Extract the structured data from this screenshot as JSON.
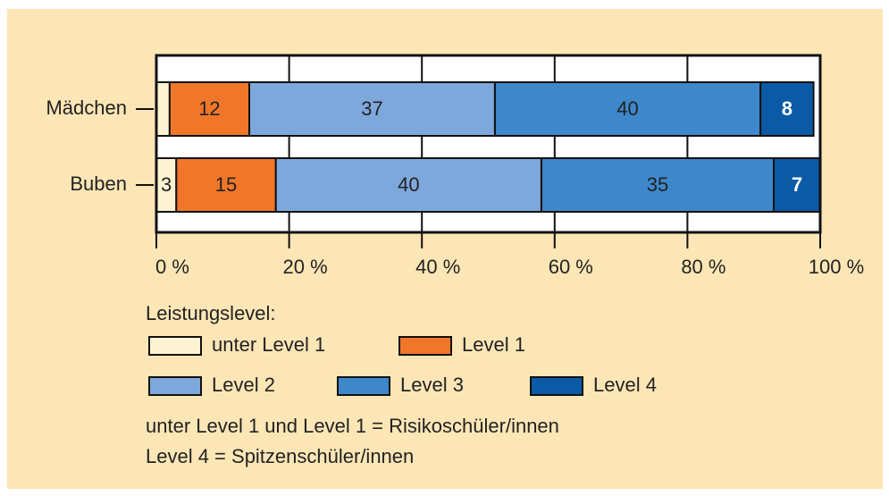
{
  "chart_data": {
    "type": "stacked-barh",
    "categories": [
      "Mädchen",
      "Buben"
    ],
    "series": [
      {
        "name": "unter Level 1",
        "color": "#fdf3d2",
        "values": [
          2,
          3
        ]
      },
      {
        "name": "Level 1",
        "color": "#f0772a",
        "values": [
          12,
          15
        ]
      },
      {
        "name": "Level 2",
        "color": "#7ea8db",
        "values": [
          37,
          40
        ]
      },
      {
        "name": "Level 3",
        "color": "#3e87cb",
        "values": [
          40,
          35
        ]
      },
      {
        "name": "Level 4",
        "color": "#0b5aa6",
        "values": [
          8,
          7
        ]
      }
    ],
    "xlim": [
      0,
      100
    ],
    "xticks": [
      {
        "value": 0,
        "label": "0 %"
      },
      {
        "value": 20,
        "label": "20 %"
      },
      {
        "value": 40,
        "label": "40 %"
      },
      {
        "value": 60,
        "label": "60 %"
      },
      {
        "value": 80,
        "label": "80 %"
      },
      {
        "value": 100,
        "label": "100 %"
      }
    ],
    "grid": true,
    "legend_title": "Leistungslevel:",
    "notes": [
      "unter Level 1 und Level 1 = Risikoschüler/innen",
      "Level 4 = Spitzenschüler/innen"
    ]
  }
}
